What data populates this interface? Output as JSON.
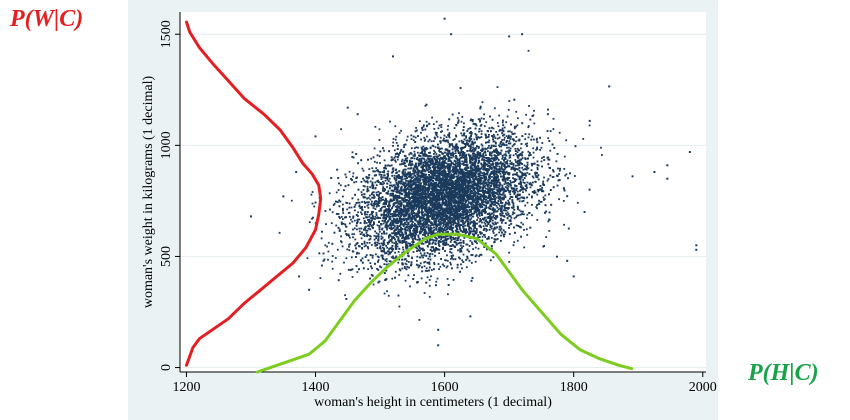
{
  "annotations": {
    "left": "P(W|C)",
    "right": "P(H|C)"
  },
  "colors": {
    "panel_bg": "#eaf2f3",
    "points": "#1b3a5c",
    "weight_curve": "#e41f22",
    "height_curve": "#7ccd1f",
    "left_label": "#e41f22",
    "right_label": "#17a34a",
    "gridline": "#ffffff"
  },
  "chart_data": {
    "type": "scatter",
    "title": "",
    "xlabel": "woman's height in centimeters (1 decimal)",
    "ylabel": "woman's weight in kilograms (1 decimal)",
    "xlim": [
      1190,
      2005
    ],
    "ylim": [
      -20,
      1600
    ],
    "xticks": [
      1200,
      1400,
      1600,
      1800,
      2000
    ],
    "yticks": [
      0,
      500,
      1000,
      1500
    ],
    "grid": "horizontal",
    "point_cloud": {
      "n": 9000,
      "center_x": 1600,
      "center_y": 770,
      "sd_x": 68,
      "sd_y": 140,
      "correlation": 0.35
    },
    "outliers": [
      [
        1990,
        550
      ],
      [
        1990,
        530
      ],
      [
        1980,
        970
      ],
      [
        1945,
        910
      ],
      [
        1945,
        850
      ],
      [
        1925,
        880
      ],
      [
        1855,
        1265
      ],
      [
        1800,
        410
      ],
      [
        1600,
        1570
      ],
      [
        1520,
        1400
      ],
      [
        1590,
        100
      ],
      [
        1590,
        170
      ],
      [
        1640,
        230
      ],
      [
        1610,
        1500
      ],
      [
        1700,
        1490
      ],
      [
        1720,
        1500
      ],
      [
        1300,
        680
      ],
      [
        1350,
        770
      ],
      [
        1400,
        1040
      ],
      [
        1390,
        350
      ],
      [
        1450,
        1170
      ],
      [
        1760,
        1140
      ],
      [
        1790,
        480
      ],
      [
        1825,
        1110
      ]
    ],
    "overlay_curves": [
      {
        "name": "P(W|C)",
        "orientation": "vertical",
        "baseline_x": 1200,
        "points": [
          [
            1200,
            10
          ],
          [
            1205,
            50
          ],
          [
            1210,
            90
          ],
          [
            1220,
            130
          ],
          [
            1240,
            170
          ],
          [
            1265,
            220
          ],
          [
            1290,
            290
          ],
          [
            1315,
            350
          ],
          [
            1340,
            410
          ],
          [
            1365,
            470
          ],
          [
            1385,
            540
          ],
          [
            1400,
            620
          ],
          [
            1405,
            690
          ],
          [
            1408,
            760
          ],
          [
            1405,
            820
          ],
          [
            1395,
            870
          ],
          [
            1380,
            920
          ],
          [
            1365,
            990
          ],
          [
            1345,
            1070
          ],
          [
            1320,
            1140
          ],
          [
            1290,
            1210
          ],
          [
            1265,
            1290
          ],
          [
            1240,
            1370
          ],
          [
            1220,
            1440
          ],
          [
            1205,
            1510
          ],
          [
            1200,
            1555
          ]
        ]
      },
      {
        "name": "P(H|C)",
        "orientation": "horizontal",
        "baseline_y": -20,
        "points": [
          [
            1310,
            -20
          ],
          [
            1330,
            0
          ],
          [
            1360,
            30
          ],
          [
            1390,
            60
          ],
          [
            1415,
            120
          ],
          [
            1435,
            200
          ],
          [
            1460,
            300
          ],
          [
            1485,
            380
          ],
          [
            1510,
            450
          ],
          [
            1540,
            520
          ],
          [
            1570,
            580
          ],
          [
            1590,
            600
          ],
          [
            1620,
            600
          ],
          [
            1650,
            580
          ],
          [
            1680,
            510
          ],
          [
            1700,
            430
          ],
          [
            1720,
            350
          ],
          [
            1750,
            250
          ],
          [
            1780,
            150
          ],
          [
            1810,
            80
          ],
          [
            1840,
            40
          ],
          [
            1870,
            10
          ],
          [
            1890,
            -5
          ]
        ]
      }
    ]
  }
}
